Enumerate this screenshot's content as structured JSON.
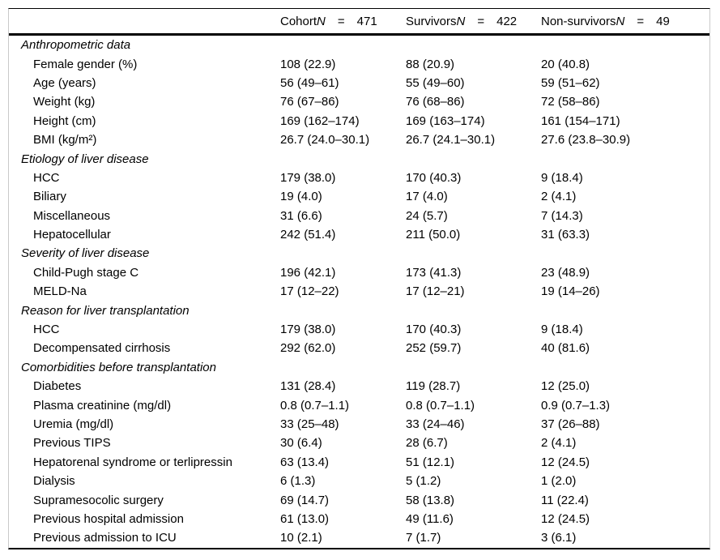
{
  "table": {
    "columns": [
      {
        "group": "Cohort",
        "n_label": "N",
        "eq": "=",
        "n_value": "471"
      },
      {
        "group": "Survivors",
        "n_label": "N",
        "eq": "=",
        "n_value": "422"
      },
      {
        "group": "Non-survivors",
        "n_label": "N",
        "eq": "=",
        "n_value": "49"
      }
    ],
    "sections": [
      {
        "title": "Anthropometric data",
        "rows": [
          {
            "label": "Female gender (%)",
            "values": [
              "108 (22.9)",
              "88 (20.9)",
              "20 (40.8)"
            ]
          },
          {
            "label": "Age (years)",
            "values": [
              "56 (49–61)",
              "55 (49–60)",
              "59 (51–62)"
            ]
          },
          {
            "label": "Weight (kg)",
            "values": [
              "76 (67–86)",
              "76 (68–86)",
              "72 (58–86)"
            ]
          },
          {
            "label": "Height (cm)",
            "values": [
              "169 (162–174)",
              "169 (163–174)",
              "161 (154–171)"
            ]
          },
          {
            "label": "BMI (kg/m²)",
            "values": [
              "26.7 (24.0–30.1)",
              "26.7 (24.1–30.1)",
              "27.6 (23.8–30.9)"
            ]
          }
        ]
      },
      {
        "title": "Etiology of liver disease",
        "rows": [
          {
            "label": "HCC",
            "values": [
              "179 (38.0)",
              "170 (40.3)",
              "9 (18.4)"
            ]
          },
          {
            "label": "Biliary",
            "values": [
              "19 (4.0)",
              "17 (4.0)",
              "2 (4.1)"
            ]
          },
          {
            "label": "Miscellaneous",
            "values": [
              "31 (6.6)",
              "24 (5.7)",
              "7 (14.3)"
            ]
          },
          {
            "label": "Hepatocellular",
            "values": [
              "242 (51.4)",
              "211 (50.0)",
              "31 (63.3)"
            ]
          }
        ]
      },
      {
        "title": "Severity of liver disease",
        "rows": [
          {
            "label": "Child-Pugh stage C",
            "values": [
              "196 (42.1)",
              "173 (41.3)",
              "23 (48.9)"
            ]
          },
          {
            "label": "MELD-Na",
            "values": [
              "17 (12–22)",
              "17 (12–21)",
              "19 (14–26)"
            ]
          }
        ]
      },
      {
        "title": "Reason for liver transplantation",
        "rows": [
          {
            "label": "HCC",
            "values": [
              "179 (38.0)",
              "170 (40.3)",
              "9 (18.4)"
            ]
          },
          {
            "label": "Decompensated cirrhosis",
            "values": [
              "292 (62.0)",
              "252 (59.7)",
              "40 (81.6)"
            ]
          }
        ]
      },
      {
        "title": "Comorbidities before transplantation",
        "rows": [
          {
            "label": "Diabetes",
            "values": [
              "131 (28.4)",
              "119 (28.7)",
              "12 (25.0)"
            ]
          },
          {
            "label": "Plasma creatinine (mg/dl)",
            "values": [
              "0.8 (0.7–1.1)",
              "0.8 (0.7–1.1)",
              "0.9 (0.7–1.3)"
            ]
          },
          {
            "label": "Uremia (mg/dl)",
            "values": [
              "33 (25–48)",
              "33 (24–46)",
              "37 (26–88)"
            ]
          },
          {
            "label": "Previous TIPS",
            "values": [
              "30 (6.4)",
              "28 (6.7)",
              "2 (4.1)"
            ]
          },
          {
            "label": "Hepatorenal syndrome or terlipressin",
            "values": [
              "63 (13.4)",
              "51 (12.1)",
              "12 (24.5)"
            ]
          },
          {
            "label": "Dialysis",
            "values": [
              "6 (1.3)",
              "5 (1.2)",
              "1 (2.0)"
            ]
          },
          {
            "label": "Supramesocolic surgery",
            "values": [
              "69 (14.7)",
              "58 (13.8)",
              "11 (22.4)"
            ]
          },
          {
            "label": "Previous hospital admission",
            "values": [
              "61 (13.0)",
              "49 (11.6)",
              "12 (24.5)"
            ]
          },
          {
            "label": "Previous admission to ICU",
            "values": [
              "10 (2.1)",
              "7 (1.7)",
              "3 (6.1)"
            ]
          }
        ]
      }
    ],
    "colors": {
      "rule": "#000000",
      "frame": "#c9c9c9",
      "text": "#000000"
    }
  }
}
